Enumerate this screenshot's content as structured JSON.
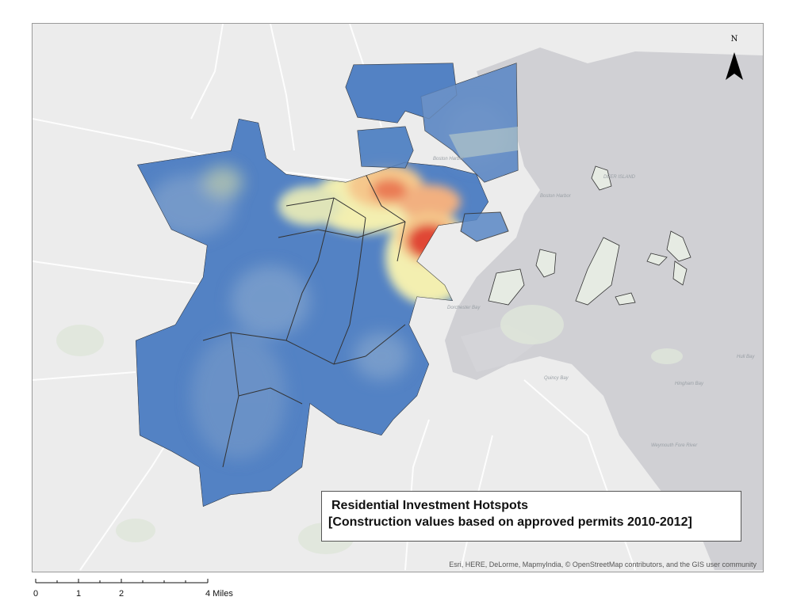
{
  "map": {
    "title": "Residential Investment Hotspots",
    "subtitle": "[Construction values based on approved permits 2010-2012]",
    "attribution": "Esri, HERE, DeLorme, MapmyIndia, © OpenStreetMap contributors, and the GIS user community",
    "north_label": "N",
    "water_labels": [
      "Boston Harbor",
      "Boston Harbor",
      "Dorchester Bay",
      "Quincy Bay",
      "Hingham Bay",
      "Hull Bay",
      "DEER ISLAND",
      "Weymouth Fore River"
    ],
    "scale": {
      "labels": [
        "0",
        "1",
        "2",
        "4 Miles"
      ]
    },
    "colors": {
      "background_land": "#eeeeee",
      "water": "#d0d0d4",
      "low": "#4f7fc4",
      "medium_low": "#8fb0d6",
      "medium": "#f5f0b0",
      "high": "#f0a070",
      "hot": "#e04636"
    }
  }
}
